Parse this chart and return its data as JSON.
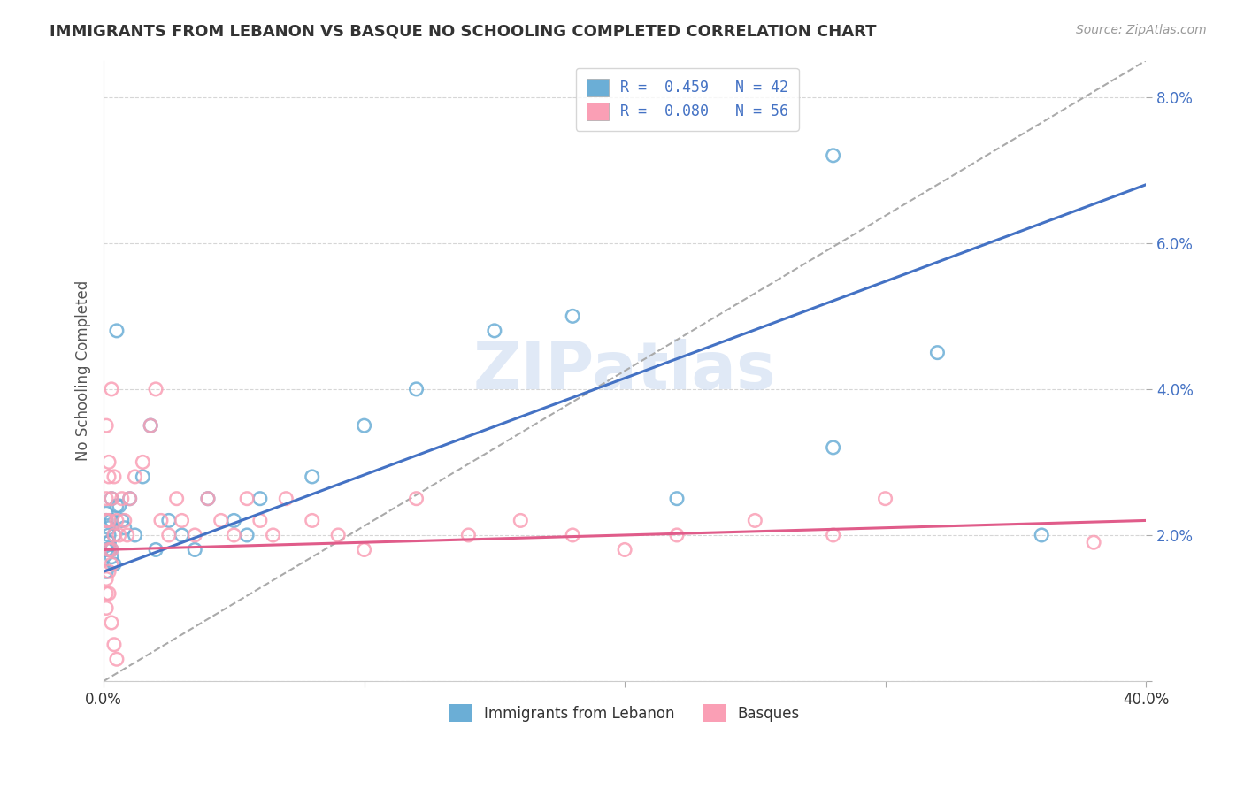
{
  "title": "IMMIGRANTS FROM LEBANON VS BASQUE NO SCHOOLING COMPLETED CORRELATION CHART",
  "source": "Source: ZipAtlas.com",
  "ylabel": "No Schooling Completed",
  "y_ticks": [
    0.0,
    0.02,
    0.04,
    0.06,
    0.08
  ],
  "y_tick_labels": [
    "",
    "2.0%",
    "4.0%",
    "6.0%",
    "8.0%"
  ],
  "x_ticks": [
    0.0,
    0.1,
    0.2,
    0.3,
    0.4
  ],
  "x_tick_labels": [
    "0.0%",
    "",
    "",
    "",
    "40.0%"
  ],
  "xlim": [
    0.0,
    0.4
  ],
  "ylim": [
    0.0,
    0.085
  ],
  "legend_label_1": "R =  0.459   N = 42",
  "legend_label_2": "R =  0.080   N = 56",
  "legend_label_bottom_1": "Immigrants from Lebanon",
  "legend_label_bottom_2": "Basques",
  "color_blue": "#6baed6",
  "color_pink": "#fa9fb5",
  "watermark": "ZIPatlas",
  "blue_scatter_x": [
    0.005,
    0.001,
    0.002,
    0.003,
    0.001,
    0.002,
    0.003,
    0.004,
    0.002,
    0.001,
    0.003,
    0.002,
    0.004,
    0.005,
    0.001,
    0.002,
    0.003,
    0.006,
    0.007,
    0.008,
    0.01,
    0.015,
    0.012,
    0.02,
    0.025,
    0.018,
    0.03,
    0.035,
    0.04,
    0.05,
    0.055,
    0.06,
    0.08,
    0.1,
    0.12,
    0.15,
    0.18,
    0.22,
    0.28,
    0.32,
    0.36,
    0.28
  ],
  "blue_scatter_y": [
    0.024,
    0.018,
    0.02,
    0.022,
    0.015,
    0.019,
    0.017,
    0.016,
    0.021,
    0.023,
    0.025,
    0.018,
    0.02,
    0.048,
    0.022,
    0.019,
    0.018,
    0.024,
    0.022,
    0.021,
    0.025,
    0.028,
    0.02,
    0.018,
    0.022,
    0.035,
    0.02,
    0.018,
    0.025,
    0.022,
    0.02,
    0.025,
    0.028,
    0.035,
    0.04,
    0.048,
    0.05,
    0.025,
    0.032,
    0.045,
    0.02,
    0.072
  ],
  "pink_scatter_x": [
    0.001,
    0.002,
    0.001,
    0.003,
    0.002,
    0.001,
    0.003,
    0.002,
    0.001,
    0.004,
    0.002,
    0.003,
    0.001,
    0.002,
    0.003,
    0.004,
    0.005,
    0.006,
    0.007,
    0.008,
    0.009,
    0.01,
    0.012,
    0.015,
    0.018,
    0.02,
    0.022,
    0.025,
    0.028,
    0.03,
    0.035,
    0.04,
    0.045,
    0.05,
    0.055,
    0.06,
    0.065,
    0.07,
    0.08,
    0.09,
    0.1,
    0.12,
    0.14,
    0.16,
    0.18,
    0.2,
    0.22,
    0.25,
    0.28,
    0.3,
    0.001,
    0.002,
    0.003,
    0.004,
    0.005,
    0.38
  ],
  "pink_scatter_y": [
    0.025,
    0.03,
    0.035,
    0.04,
    0.028,
    0.022,
    0.018,
    0.015,
    0.012,
    0.02,
    0.018,
    0.016,
    0.014,
    0.022,
    0.025,
    0.028,
    0.022,
    0.02,
    0.025,
    0.022,
    0.02,
    0.025,
    0.028,
    0.03,
    0.035,
    0.04,
    0.022,
    0.02,
    0.025,
    0.022,
    0.02,
    0.025,
    0.022,
    0.02,
    0.025,
    0.022,
    0.02,
    0.025,
    0.022,
    0.02,
    0.018,
    0.025,
    0.02,
    0.022,
    0.02,
    0.018,
    0.02,
    0.022,
    0.02,
    0.025,
    0.01,
    0.012,
    0.008,
    0.005,
    0.003,
    0.019
  ],
  "blue_line_x": [
    0.0,
    0.4
  ],
  "blue_line_y_start": 0.015,
  "blue_line_y_end": 0.068,
  "pink_line_x": [
    0.0,
    0.4
  ],
  "pink_line_y_start": 0.018,
  "pink_line_y_end": 0.022,
  "dashed_line_x": [
    0.0,
    0.4
  ],
  "dashed_line_y_start": 0.0,
  "dashed_line_y_end": 0.085,
  "blue_trend_color": "#4472c4",
  "pink_trend_color": "#e05c8a",
  "dash_color": "#aaaaaa",
  "ytick_color": "#4472c4",
  "title_fontsize": 13,
  "source_fontsize": 10,
  "axis_fontsize": 12
}
